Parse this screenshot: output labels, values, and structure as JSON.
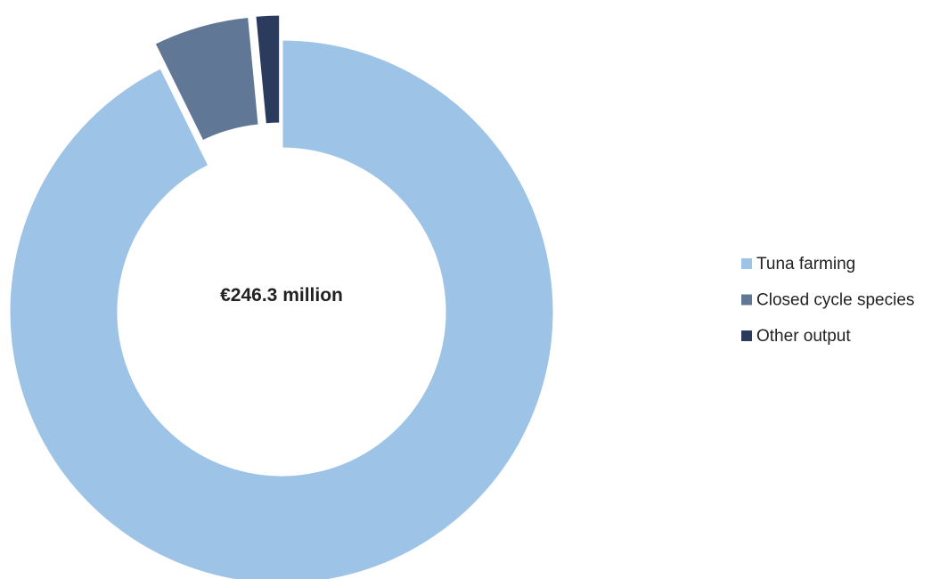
{
  "chart_data": {
    "type": "donut",
    "center_label": "€246.3 million",
    "categories": [
      "Tuna farming",
      "Closed cycle species",
      "Other output"
    ],
    "values": [
      92.7,
      5.8,
      1.5
    ],
    "colors": [
      "#9dc3e6",
      "#607896",
      "#2b3b5e"
    ],
    "exploded": [
      false,
      true,
      true
    ],
    "legend": "right"
  }
}
